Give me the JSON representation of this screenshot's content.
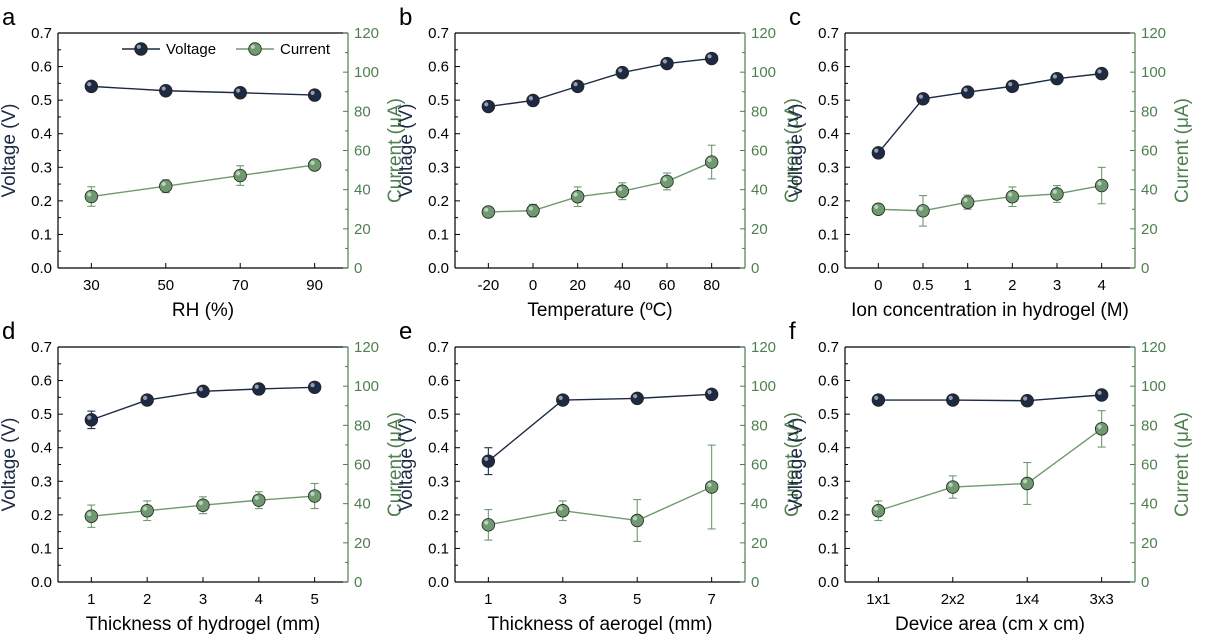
{
  "colors": {
    "voltage": "#1d2a44",
    "current": "#6f9a6f",
    "current_axis": "#4f7f4f"
  },
  "legend": {
    "voltage": "Voltage",
    "current": "Current"
  },
  "chart_data": [
    {
      "type": "line",
      "panel": "a",
      "xlabel": "RH (%)",
      "ylabel": "Voltage (V)",
      "y2label": "Current (μA)",
      "categories": [
        "30",
        "50",
        "70",
        "90"
      ],
      "ylim": [
        0,
        0.7
      ],
      "y2lim": [
        0,
        120
      ],
      "yticks": [
        "0.0",
        "0.1",
        "0.2",
        "0.3",
        "0.4",
        "0.5",
        "0.6",
        "0.7"
      ],
      "y2ticks": [
        "0",
        "20",
        "40",
        "60",
        "80",
        "100",
        "120"
      ],
      "legend": true,
      "series": [
        {
          "name": "Voltage",
          "axis": "left",
          "values": [
            0.541,
            0.528,
            0.522,
            0.515
          ],
          "errors": [
            0.008,
            0.007,
            0.007,
            0.012
          ]
        },
        {
          "name": "Current",
          "axis": "right",
          "values": [
            36.5,
            41.8,
            47.2,
            52.6
          ],
          "errors": [
            5.0,
            3.3,
            5.0,
            2.5
          ]
        }
      ]
    },
    {
      "type": "line",
      "panel": "b",
      "xlabel": "Temperature (ºC)",
      "ylabel": "Voltage (V)",
      "y2label": "Current (μA)",
      "categories": [
        "-20",
        "0",
        "20",
        "40",
        "60",
        "80"
      ],
      "ylim": [
        0,
        0.7
      ],
      "y2lim": [
        0,
        120
      ],
      "yticks": [
        "0.0",
        "0.1",
        "0.2",
        "0.3",
        "0.4",
        "0.5",
        "0.6",
        "0.7"
      ],
      "y2ticks": [
        "0",
        "20",
        "40",
        "60",
        "80",
        "100",
        "120"
      ],
      "legend": false,
      "series": [
        {
          "name": "Voltage",
          "axis": "left",
          "values": [
            0.481,
            0.499,
            0.541,
            0.582,
            0.609,
            0.624
          ],
          "errors": [
            0.006,
            0.006,
            0.006,
            0.006,
            0.006,
            0.006
          ]
        },
        {
          "name": "Current",
          "axis": "right",
          "values": [
            28.6,
            29.3,
            36.4,
            39.2,
            44.2,
            54.1
          ],
          "errors": [
            1.5,
            3.2,
            5.0,
            4.3,
            4.3,
            8.6
          ]
        }
      ]
    },
    {
      "type": "line",
      "panel": "c",
      "xlabel": "Ion concentration in hydrogel (M)",
      "ylabel": "Voltage (V)",
      "y2label": "Current (μA)",
      "categories": [
        "0",
        "0.5",
        "1",
        "2",
        "3",
        "4"
      ],
      "ylim": [
        0,
        0.7
      ],
      "y2lim": [
        0,
        120
      ],
      "yticks": [
        "0.0",
        "0.1",
        "0.2",
        "0.3",
        "0.4",
        "0.5",
        "0.6",
        "0.7"
      ],
      "y2ticks": [
        "0",
        "20",
        "40",
        "60",
        "80",
        "100",
        "120"
      ],
      "legend": false,
      "series": [
        {
          "name": "Voltage",
          "axis": "left",
          "values": [
            0.343,
            0.504,
            0.524,
            0.541,
            0.564,
            0.579
          ],
          "errors": [
            0.006,
            0.006,
            0.006,
            0.006,
            0.006,
            0.006
          ]
        },
        {
          "name": "Current",
          "axis": "right",
          "values": [
            30.0,
            29.2,
            33.6,
            36.4,
            37.8,
            42.1
          ],
          "errors": [
            2.5,
            7.8,
            3.6,
            5.0,
            4.3,
            9.3
          ]
        }
      ]
    },
    {
      "type": "line",
      "panel": "d",
      "xlabel": "Thickness of hydrogel (mm)",
      "ylabel": "Voltage (V)",
      "y2label": "Current (μA)",
      "categories": [
        "1",
        "2",
        "3",
        "4",
        "5"
      ],
      "ylim": [
        0,
        0.7
      ],
      "y2lim": [
        0,
        120
      ],
      "yticks": [
        "0.0",
        "0.1",
        "0.2",
        "0.3",
        "0.4",
        "0.5",
        "0.6",
        "0.7"
      ],
      "y2ticks": [
        "0",
        "20",
        "40",
        "60",
        "80",
        "100",
        "120"
      ],
      "legend": false,
      "series": [
        {
          "name": "Voltage",
          "axis": "left",
          "values": [
            0.483,
            0.542,
            0.568,
            0.575,
            0.58
          ],
          "errors": [
            0.026,
            0.006,
            0.006,
            0.006,
            0.006
          ]
        },
        {
          "name": "Current",
          "axis": "right",
          "values": [
            33.6,
            36.4,
            39.2,
            41.8,
            43.9
          ],
          "errors": [
            5.7,
            5.0,
            4.3,
            4.3,
            6.4
          ]
        }
      ]
    },
    {
      "type": "line",
      "panel": "e",
      "xlabel": "Thickness of aerogel (mm)",
      "ylabel": "Voltage (V)",
      "y2label": "Current (μA)",
      "categories": [
        "1",
        "3",
        "5",
        "7"
      ],
      "ylim": [
        0,
        0.7
      ],
      "y2lim": [
        0,
        120
      ],
      "yticks": [
        "0.0",
        "0.1",
        "0.2",
        "0.3",
        "0.4",
        "0.5",
        "0.6",
        "0.7"
      ],
      "y2ticks": [
        "0",
        "20",
        "40",
        "60",
        "80",
        "100",
        "120"
      ],
      "legend": false,
      "series": [
        {
          "name": "Voltage",
          "axis": "left",
          "values": [
            0.36,
            0.542,
            0.547,
            0.559
          ],
          "errors": [
            0.04,
            0.006,
            0.006,
            0.006
          ]
        },
        {
          "name": "Current",
          "axis": "right",
          "values": [
            29.2,
            36.4,
            31.4,
            48.5
          ],
          "errors": [
            7.8,
            5.0,
            10.7,
            21.4
          ]
        }
      ]
    },
    {
      "type": "line",
      "panel": "f",
      "xlabel": "Device area (cm x cm)",
      "ylabel": "Voltage (V)",
      "y2label": "Current (μA)",
      "categories": [
        "1x1",
        "2x2",
        "1x4",
        "3x3"
      ],
      "ylim": [
        0,
        0.7
      ],
      "y2lim": [
        0,
        120
      ],
      "yticks": [
        "0.0",
        "0.1",
        "0.2",
        "0.3",
        "0.4",
        "0.5",
        "0.6",
        "0.7"
      ],
      "y2ticks": [
        "0",
        "20",
        "40",
        "60",
        "80",
        "100",
        "120"
      ],
      "legend": false,
      "series": [
        {
          "name": "Voltage",
          "axis": "left",
          "values": [
            0.542,
            0.542,
            0.54,
            0.557
          ],
          "errors": [
            0.006,
            0.006,
            0.006,
            0.006
          ]
        },
        {
          "name": "Current",
          "axis": "right",
          "values": [
            36.4,
            48.5,
            50.3,
            78.2
          ],
          "errors": [
            5.0,
            5.7,
            10.7,
            9.3
          ]
        }
      ]
    }
  ]
}
